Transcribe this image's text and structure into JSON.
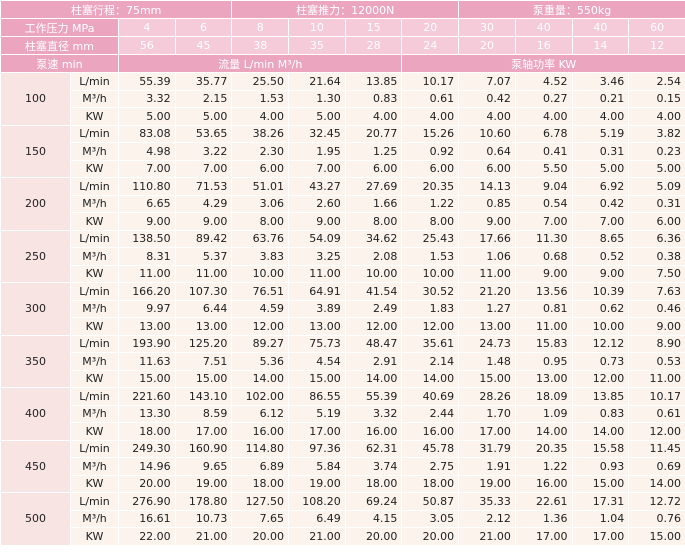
{
  "header": {
    "stroke": "柱塞行程：75mm",
    "thrust": "柱塞推力：12000N",
    "weight": "泵重量：550kg"
  },
  "pressure": {
    "label": "工作压力 MPa",
    "values": [
      "4",
      "6",
      "8",
      "10",
      "15",
      "20",
      "30",
      "40",
      "40",
      "60"
    ]
  },
  "diameter": {
    "label": "柱塞直径 mm",
    "values": [
      "56",
      "45",
      "38",
      "35",
      "28",
      "24",
      "20",
      "16",
      "14",
      "12"
    ]
  },
  "subheader": {
    "speed": "泵速 min",
    "flow": "流量 L/min M³/h",
    "power": "泵轴功率 KW"
  },
  "groups": [
    {
      "speed": "100",
      "rows": [
        {
          "unit": "L/min",
          "values": [
            "55.39",
            "35.77",
            "25.50",
            "21.64",
            "13.85",
            "10.17",
            "7.07",
            "4.52",
            "3.46",
            "2.54"
          ]
        },
        {
          "unit": "M³/h",
          "values": [
            "3.32",
            "2.15",
            "1.53",
            "1.30",
            "0.83",
            "0.61",
            "0.42",
            "0.27",
            "0.21",
            "0.15"
          ]
        },
        {
          "unit": "KW",
          "values": [
            "5.00",
            "5.00",
            "4.00",
            "5.00",
            "4.00",
            "4.00",
            "4.00",
            "4.00",
            "4.00",
            "4.00"
          ]
        }
      ]
    },
    {
      "speed": "150",
      "rows": [
        {
          "unit": "L/min",
          "values": [
            "83.08",
            "53.65",
            "38.26",
            "32.45",
            "20.77",
            "15.26",
            "10.60",
            "6.78",
            "5.19",
            "3.82"
          ]
        },
        {
          "unit": "M³/h",
          "values": [
            "4.98",
            "3.22",
            "2.30",
            "1.95",
            "1.25",
            "0.92",
            "0.64",
            "0.41",
            "0.31",
            "0.23"
          ]
        },
        {
          "unit": "KW",
          "values": [
            "7.00",
            "7.00",
            "6.00",
            "7.00",
            "6.00",
            "6.00",
            "6.00",
            "5.50",
            "5.00",
            "5.00"
          ]
        }
      ]
    },
    {
      "speed": "200",
      "rows": [
        {
          "unit": "L/min",
          "values": [
            "110.80",
            "71.53",
            "51.01",
            "43.27",
            "27.69",
            "20.35",
            "14.13",
            "9.04",
            "6.92",
            "5.09"
          ]
        },
        {
          "unit": "M³/h",
          "values": [
            "6.65",
            "4.29",
            "3.06",
            "2.60",
            "1.66",
            "1.22",
            "0.85",
            "0.54",
            "0.42",
            "0.31"
          ]
        },
        {
          "unit": "KW",
          "values": [
            "9.00",
            "9.00",
            "8.00",
            "9.00",
            "8.00",
            "8.00",
            "9.00",
            "7.00",
            "7.00",
            "6.00"
          ]
        }
      ]
    },
    {
      "speed": "250",
      "rows": [
        {
          "unit": "L/min",
          "values": [
            "138.50",
            "89.42",
            "63.76",
            "54.09",
            "34.62",
            "25.43",
            "17.66",
            "11.30",
            "8.65",
            "6.36"
          ]
        },
        {
          "unit": "M³/h",
          "values": [
            "8.31",
            "5.37",
            "3.83",
            "3.25",
            "2.08",
            "1.53",
            "1.06",
            "0.68",
            "0.52",
            "0.38"
          ]
        },
        {
          "unit": "KW",
          "values": [
            "11.00",
            "11.00",
            "10.00",
            "11.00",
            "10.00",
            "10.00",
            "11.00",
            "9.00",
            "9.00",
            "7.50"
          ]
        }
      ]
    },
    {
      "speed": "300",
      "rows": [
        {
          "unit": "L/min",
          "values": [
            "166.20",
            "107.30",
            "76.51",
            "64.91",
            "41.54",
            "30.52",
            "21.20",
            "13.56",
            "10.39",
            "7.63"
          ]
        },
        {
          "unit": "M³/h",
          "values": [
            "9.97",
            "6.44",
            "4.59",
            "3.89",
            "2.49",
            "1.83",
            "1.27",
            "0.81",
            "0.62",
            "0.46"
          ]
        },
        {
          "unit": "KW",
          "values": [
            "13.00",
            "13.00",
            "12.00",
            "13.00",
            "12.00",
            "12.00",
            "13.00",
            "11.00",
            "10.00",
            "9.00"
          ]
        }
      ]
    },
    {
      "speed": "350",
      "rows": [
        {
          "unit": "L/min",
          "values": [
            "193.90",
            "125.20",
            "89.27",
            "75.73",
            "48.47",
            "35.61",
            "24.73",
            "15.83",
            "12.12",
            "8.90"
          ]
        },
        {
          "unit": "M³/h",
          "values": [
            "11.63",
            "7.51",
            "5.36",
            "4.54",
            "2.91",
            "2.14",
            "1.48",
            "0.95",
            "0.73",
            "0.53"
          ]
        },
        {
          "unit": "KW",
          "values": [
            "15.00",
            "15.00",
            "14.00",
            "15.00",
            "14.00",
            "14.00",
            "15.00",
            "13.00",
            "12.00",
            "11.00"
          ]
        }
      ]
    },
    {
      "speed": "400",
      "rows": [
        {
          "unit": "L/min",
          "values": [
            "221.60",
            "143.10",
            "102.00",
            "86.55",
            "55.39",
            "40.69",
            "28.26",
            "18.09",
            "13.85",
            "10.17"
          ]
        },
        {
          "unit": "M³/h",
          "values": [
            "13.30",
            "8.59",
            "6.12",
            "5.19",
            "3.32",
            "2.44",
            "1.70",
            "1.09",
            "0.83",
            "0.61"
          ]
        },
        {
          "unit": "KW",
          "values": [
            "18.00",
            "17.00",
            "16.00",
            "17.00",
            "16.00",
            "16.00",
            "17.00",
            "14.00",
            "14.00",
            "12.00"
          ]
        }
      ]
    },
    {
      "speed": "450",
      "rows": [
        {
          "unit": "L/min",
          "values": [
            "249.30",
            "160.90",
            "114.80",
            "97.36",
            "62.31",
            "45.78",
            "31.79",
            "20.35",
            "15.58",
            "11.45"
          ]
        },
        {
          "unit": "M³/h",
          "values": [
            "14.96",
            "9.65",
            "6.89",
            "5.84",
            "3.74",
            "2.75",
            "1.91",
            "1.22",
            "0.93",
            "0.69"
          ]
        },
        {
          "unit": "KW",
          "values": [
            "20.00",
            "19.00",
            "18.00",
            "19.00",
            "18.00",
            "18.00",
            "19.00",
            "16.00",
            "15.00",
            "14.00"
          ]
        }
      ]
    },
    {
      "speed": "500",
      "rows": [
        {
          "unit": "L/min",
          "values": [
            "276.90",
            "178.80",
            "127.50",
            "108.20",
            "69.24",
            "50.87",
            "35.33",
            "22.61",
            "17.31",
            "12.72"
          ]
        },
        {
          "unit": "M³/h",
          "values": [
            "16.61",
            "10.73",
            "7.65",
            "6.49",
            "4.15",
            "3.05",
            "2.12",
            "1.36",
            "1.04",
            "0.76"
          ]
        },
        {
          "unit": "KW",
          "values": [
            "22.00",
            "21.00",
            "20.00",
            "21.00",
            "20.00",
            "20.00",
            "21.00",
            "17.00",
            "17.00",
            "15.00"
          ]
        }
      ]
    }
  ]
}
